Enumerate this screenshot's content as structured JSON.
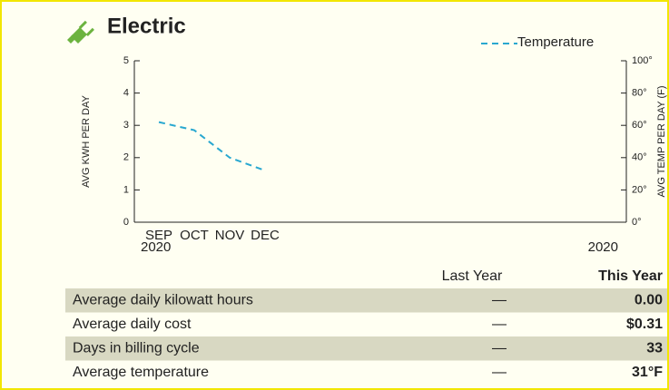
{
  "header": {
    "title": "Electric"
  },
  "chart_data": {
    "type": "line",
    "categories": [
      "SEP",
      "OCT",
      "NOV",
      "DEC"
    ],
    "x_year_labels": [
      "2020",
      "2020"
    ],
    "ylabel": "AVG KWH PER DAY",
    "y2label": "AVG TEMP PER DAY (F)",
    "ylim": [
      0,
      5
    ],
    "yticks": [
      0,
      1,
      2,
      3,
      4,
      5
    ],
    "y2lim": [
      0,
      100
    ],
    "y2ticks": [
      {
        "value": 0,
        "label": "0°"
      },
      {
        "value": 20,
        "label": "20°"
      },
      {
        "value": 40,
        "label": "40°"
      },
      {
        "value": 60,
        "label": "60°"
      },
      {
        "value": 80,
        "label": "80°"
      },
      {
        "value": 100,
        "label": "100°"
      }
    ],
    "legend": "top-right",
    "series": [
      {
        "name": "Temperature",
        "color": "#29a8d0",
        "axis": "y2",
        "values": [
          62,
          57,
          40,
          32
        ]
      }
    ]
  },
  "table": {
    "header": [
      "Last Year",
      "This Year"
    ],
    "rows": [
      [
        "Average daily kilowatt hours",
        "—",
        "0.00"
      ],
      [
        "Average daily cost",
        "—",
        "$0.31"
      ],
      [
        "Days in billing cycle",
        "—",
        "33"
      ],
      [
        "Average temperature",
        "—",
        "31°F"
      ]
    ]
  }
}
